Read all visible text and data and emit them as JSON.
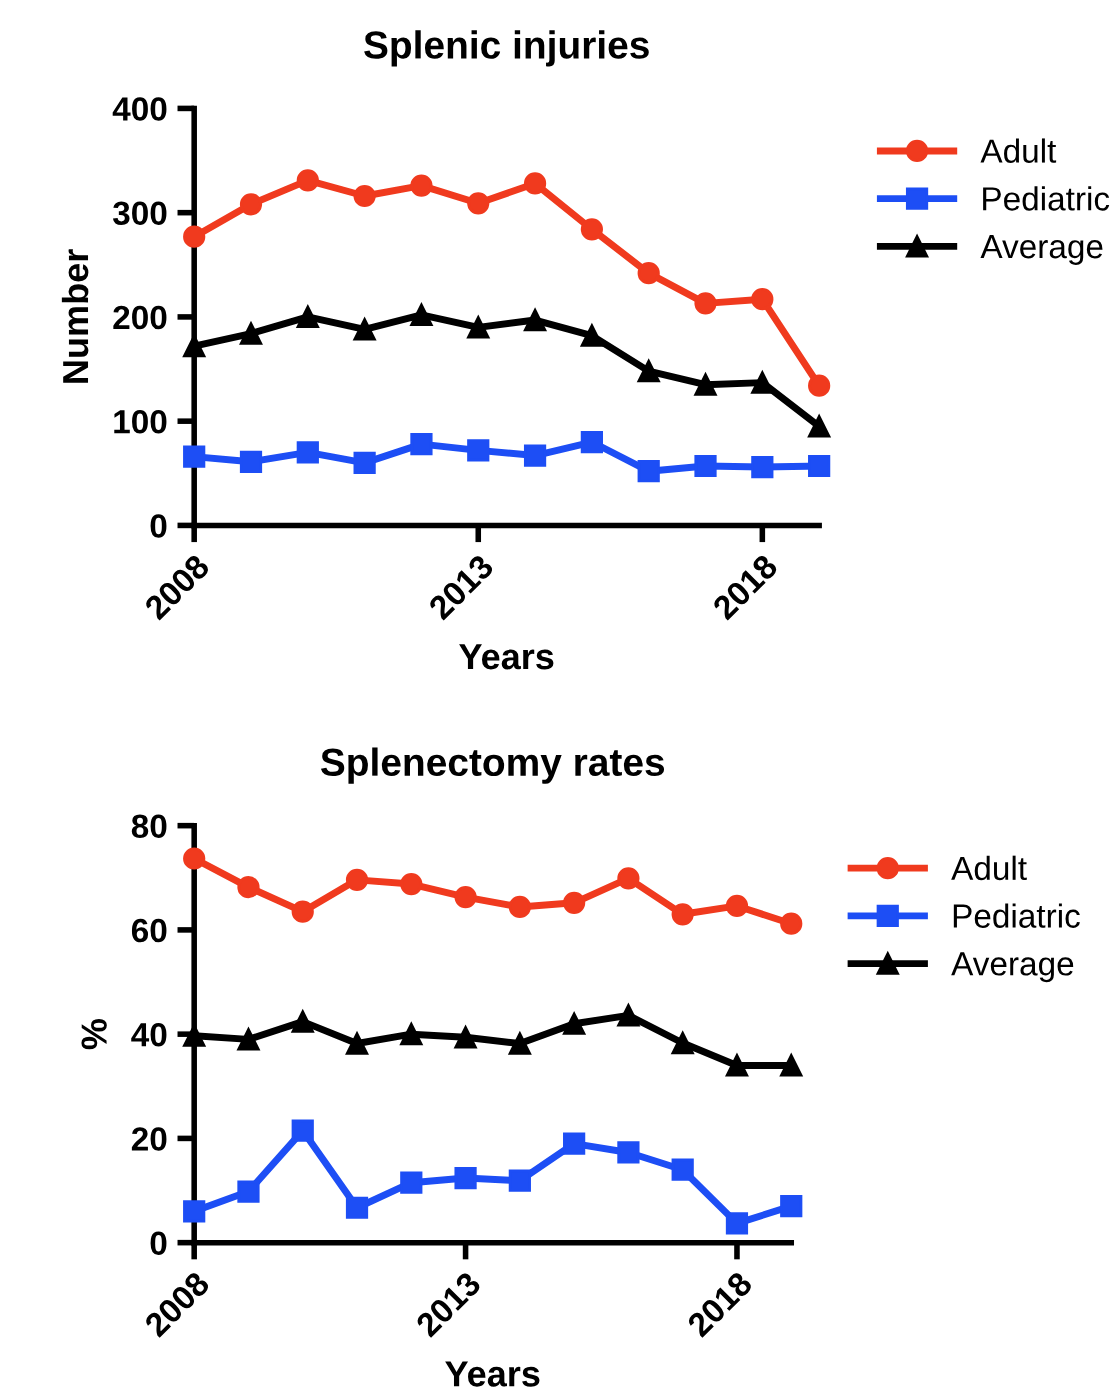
{
  "chart_data": [
    {
      "type": "line",
      "title": "Splenic injuries",
      "xlabel": "Years",
      "ylabel": "Number",
      "x": [
        2008,
        2009,
        2010,
        2011,
        2012,
        2013,
        2014,
        2015,
        2016,
        2017,
        2018,
        2019
      ],
      "series": [
        {
          "name": "Adult",
          "color": "#f03a1e",
          "marker": "circle",
          "values": [
            277,
            308,
            331,
            316,
            326,
            309,
            328,
            284,
            242,
            213,
            217,
            134
          ]
        },
        {
          "name": "Pediatric",
          "color": "#1d4ef5",
          "marker": "square",
          "values": [
            66,
            61,
            70,
            60,
            78,
            72,
            67,
            80,
            52,
            57,
            56,
            57
          ]
        },
        {
          "name": "Average",
          "color": "#000000",
          "marker": "triangle",
          "values": [
            172,
            184,
            200,
            188,
            202,
            190,
            197,
            182,
            148,
            135,
            137,
            95
          ]
        }
      ],
      "xlim": [
        2008,
        2019
      ],
      "xticks": [
        2008,
        2013,
        2018
      ],
      "ylim": [
        0,
        400
      ],
      "yticks": [
        0,
        100,
        200,
        300,
        400
      ],
      "grid": false,
      "legend": "right",
      "line_style": "solid"
    },
    {
      "type": "line",
      "title": "Splenectomy rates",
      "xlabel": "Years",
      "ylabel": "%",
      "x": [
        2008,
        2009,
        2010,
        2011,
        2012,
        2013,
        2014,
        2015,
        2016,
        2017,
        2018,
        2019
      ],
      "series": [
        {
          "name": "Adult",
          "color": "#f03a1e",
          "marker": "circle",
          "values": [
            73.7,
            68.2,
            63.5,
            69.6,
            68.8,
            66.3,
            64.4,
            65.2,
            69.9,
            63.0,
            64.6,
            61.2
          ]
        },
        {
          "name": "Pediatric",
          "color": "#1d4ef5",
          "marker": "square",
          "values": [
            6.0,
            9.8,
            21.5,
            6.7,
            11.5,
            12.4,
            11.9,
            19.0,
            17.3,
            14.0,
            3.7,
            7.0
          ]
        },
        {
          "name": "Average",
          "color": "#000000",
          "marker": "triangle",
          "values": [
            39.7,
            39.0,
            42.4,
            38.2,
            40.0,
            39.4,
            38.2,
            42.0,
            43.6,
            38.3,
            34.0,
            34.0
          ]
        }
      ],
      "xlim": [
        2008,
        2019
      ],
      "xticks": [
        2008,
        2013,
        2018
      ],
      "ylim": [
        0,
        80
      ],
      "yticks": [
        0,
        20,
        40,
        60,
        80
      ],
      "grid": false,
      "legend": "right",
      "line_style": "solid"
    }
  ]
}
